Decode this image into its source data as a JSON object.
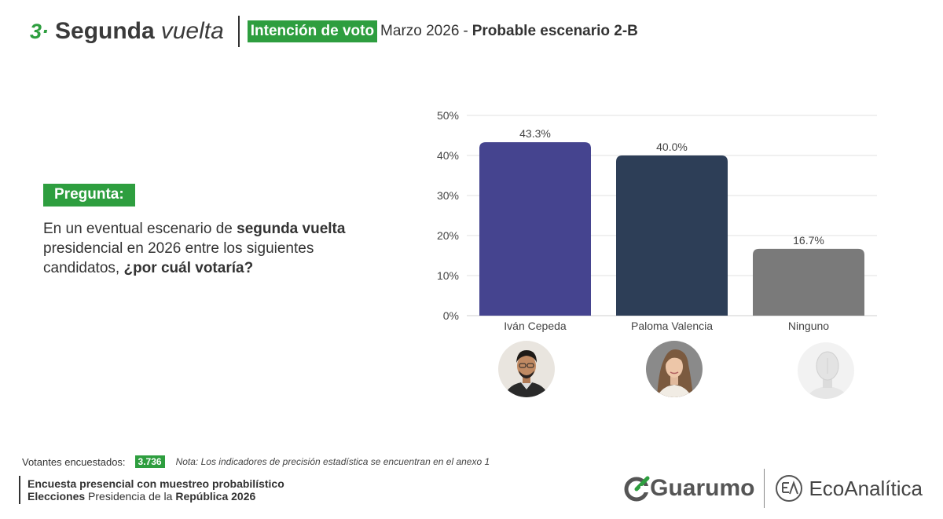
{
  "header": {
    "number": "3·",
    "title": "Segunda",
    "title_italic": "vuelta",
    "badge": "Intención de voto",
    "date": "Marzo  2026",
    "dash": "-",
    "scenario": "Probable escenario 2-B"
  },
  "question": {
    "label": "Pregunta:",
    "part1": "En un eventual escenario de ",
    "bold1": "segunda vuelta",
    "part2": " presidencial en 2026 entre los siguientes candidatos, ",
    "bold2": "¿por cuál votaría?"
  },
  "chart_data": {
    "type": "bar",
    "categories": [
      "Iván Cepeda",
      "Paloma Valencia",
      "Ninguno"
    ],
    "values": [
      43.3,
      40.0,
      16.7
    ],
    "data_labels": [
      "43.3%",
      "40.0%",
      "16.7%"
    ],
    "colors": [
      "#45448f",
      "#2d3e57",
      "#7a7a7a"
    ],
    "ylim": [
      0,
      50
    ],
    "yticks": [
      0,
      10,
      20,
      30,
      40,
      50
    ],
    "ytick_labels": [
      "0%",
      "10%",
      "20%",
      "30%",
      "40%",
      "50%"
    ],
    "grid": true,
    "title": "",
    "xlabel": "",
    "ylabel": ""
  },
  "avatars": [
    {
      "name": "ivan-cepeda-avatar",
      "icon": "man-portrait"
    },
    {
      "name": "paloma-valencia-avatar",
      "icon": "woman-portrait"
    },
    {
      "name": "ninguno-avatar",
      "icon": "mannequin"
    }
  ],
  "footer": {
    "sample_label": "Votantes encuestados:",
    "sample_value": "3.736",
    "note": "Nota: Los indicadores de precisión estadística se encuentran en el anexo 1",
    "line1": "Encuesta presencial con muestreo probabilístico",
    "line2_bold": "Elecciones",
    "line2_mid": " Presidencia de la ",
    "line2_bold2": "República 2026"
  },
  "logos": {
    "guarumo": "Guarumo",
    "ecoanalitica": "EcoAnalítica"
  },
  "colors": {
    "accent": "#2e9e3f"
  }
}
